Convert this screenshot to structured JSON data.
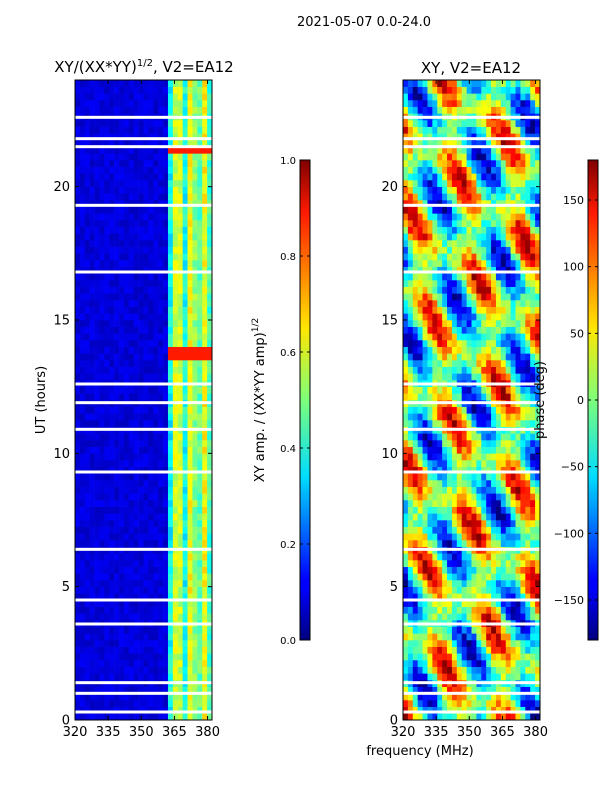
{
  "figure": {
    "suptitle": "2021-05-07 0.0-24.0",
    "xlabel": "frequency (MHz)"
  },
  "chart_data": [
    {
      "type": "heatmap",
      "title_main": "XY/(XX*YY)",
      "title_exp": "1/2",
      "title_tail": ", V2=EA12",
      "xlabel": "frequency (MHz)",
      "ylabel": "UT (hours)",
      "x_ticks": [
        320,
        335,
        350,
        365,
        380
      ],
      "y_ticks": [
        0,
        5,
        10,
        15,
        20
      ],
      "xlim": [
        320,
        382
      ],
      "ylim": [
        0,
        24
      ],
      "colormap": "jet",
      "colorbar": {
        "label_main": "XY amp. / (XX*YY amp)",
        "label_exp": "1/2",
        "ticks": [
          0.0,
          0.2,
          0.4,
          0.6,
          0.8,
          1.0
        ],
        "tick_labels": [
          "0.0",
          "0.2",
          "0.4",
          "0.6",
          "0.8",
          "1.0"
        ],
        "range": [
          0.0,
          1.0
        ]
      },
      "active_band_mhz": [
        361,
        381
      ],
      "flagged_ut_hours": [
        0.3,
        1.0,
        1.4,
        3.6,
        4.5,
        6.4,
        9.3,
        10.9,
        11.9,
        12.6,
        16.8,
        19.3,
        21.5,
        21.8,
        22.6
      ]
    },
    {
      "type": "heatmap",
      "title_main": "XY, V2=EA12",
      "xlabel": "frequency (MHz)",
      "ylabel": "",
      "x_ticks": [
        320,
        335,
        350,
        365,
        380
      ],
      "y_ticks": [
        0,
        5,
        10,
        15,
        20
      ],
      "xlim": [
        320,
        382
      ],
      "ylim": [
        0,
        24
      ],
      "colormap": "jet",
      "colorbar": {
        "label_main": "phase (deg)",
        "ticks": [
          -150,
          -100,
          -50,
          0,
          50,
          100,
          150
        ],
        "tick_labels": [
          "−150",
          "−100",
          "−50",
          "0",
          "50",
          "100",
          "150"
        ],
        "range": [
          -180,
          180
        ]
      },
      "flagged_ut_hours": [
        0.3,
        1.0,
        1.4,
        3.6,
        4.5,
        6.4,
        9.3,
        10.9,
        11.9,
        12.6,
        16.8,
        19.3,
        21.5,
        21.8,
        22.6
      ]
    }
  ]
}
